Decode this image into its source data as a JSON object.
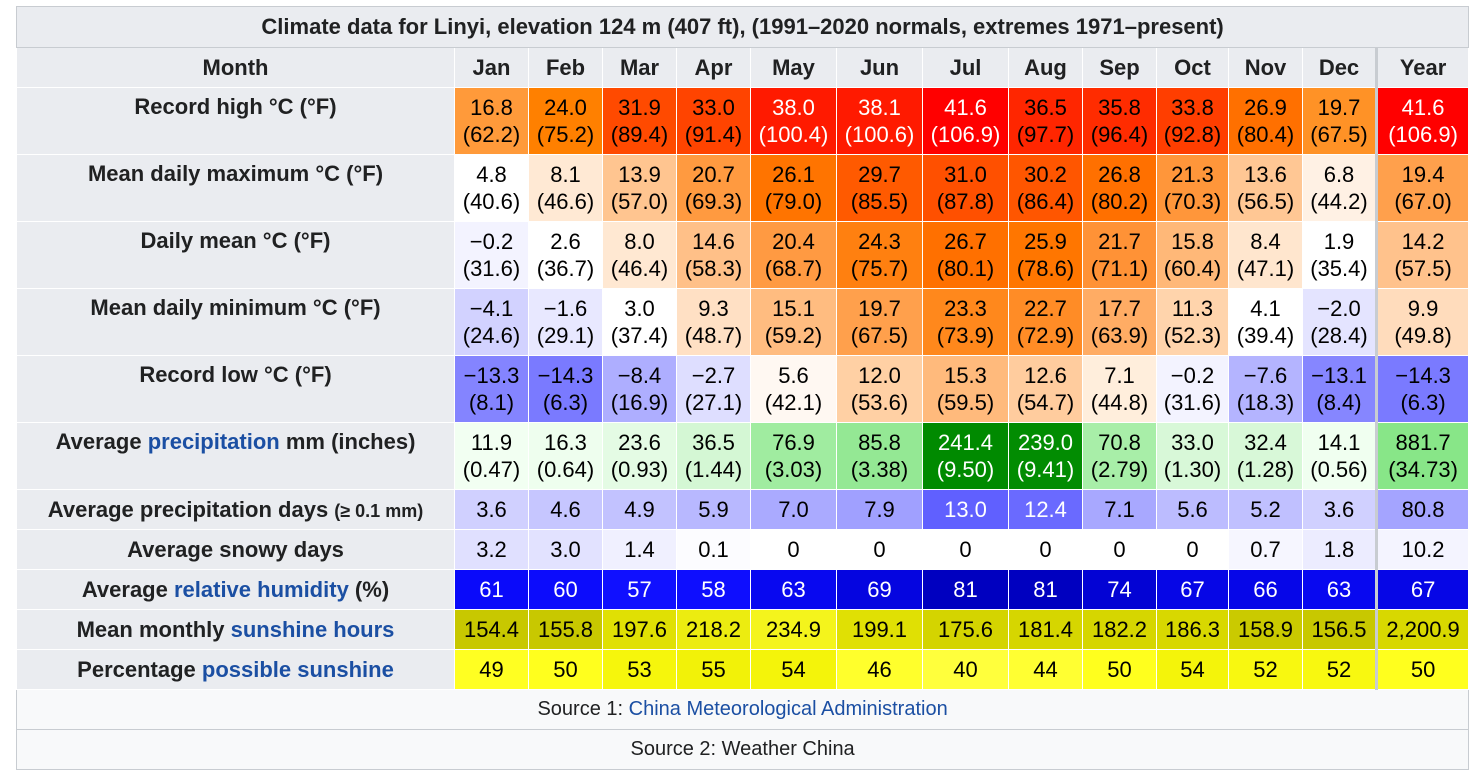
{
  "title": "Climate data for Linyi, elevation 124 m (407 ft), (1991–2020 normals, extremes 1971–present)",
  "header": {
    "month_label": "Month",
    "months": [
      "Jan",
      "Feb",
      "Mar",
      "Apr",
      "May",
      "Jun",
      "Jul",
      "Aug",
      "Sep",
      "Oct",
      "Nov",
      "Dec"
    ],
    "year_label": "Year"
  },
  "rows": [
    {
      "label_parts": [
        {
          "text": "Record high °C (°F)",
          "link": false
        }
      ],
      "tall": true,
      "cells": [
        {
          "v": "16.8",
          "s": "(62.2)",
          "bg": "#ff9a3a",
          "fg": "#000000"
        },
        {
          "v": "24.0",
          "s": "(75.2)",
          "bg": "#ff8000",
          "fg": "#000000"
        },
        {
          "v": "31.9",
          "s": "(89.4)",
          "bg": "#ff4a00",
          "fg": "#000000"
        },
        {
          "v": "33.0",
          "s": "(91.4)",
          "bg": "#ff4400",
          "fg": "#000000"
        },
        {
          "v": "38.0",
          "s": "(100.4)",
          "bg": "#ff1a00",
          "fg": "#ffffff"
        },
        {
          "v": "38.1",
          "s": "(100.6)",
          "bg": "#ff1a00",
          "fg": "#ffffff"
        },
        {
          "v": "41.6",
          "s": "(106.9)",
          "bg": "#ff0000",
          "fg": "#ffffff"
        },
        {
          "v": "36.5",
          "s": "(97.7)",
          "bg": "#ff2600",
          "fg": "#000000"
        },
        {
          "v": "35.8",
          "s": "(96.4)",
          "bg": "#ff2c00",
          "fg": "#000000"
        },
        {
          "v": "33.8",
          "s": "(92.8)",
          "bg": "#ff3e00",
          "fg": "#000000"
        },
        {
          "v": "26.9",
          "s": "(80.4)",
          "bg": "#ff7000",
          "fg": "#000000"
        },
        {
          "v": "19.7",
          "s": "(67.5)",
          "bg": "#ff9226",
          "fg": "#000000"
        },
        {
          "v": "41.6",
          "s": "(106.9)",
          "bg": "#ff0000",
          "fg": "#ffffff"
        }
      ]
    },
    {
      "label_parts": [
        {
          "text": "Mean daily maximum °C (°F)",
          "link": false
        }
      ],
      "tall": true,
      "cells": [
        {
          "v": "4.8",
          "s": "(40.6)",
          "bg": "#ffffff",
          "fg": "#000000"
        },
        {
          "v": "8.1",
          "s": "(46.6)",
          "bg": "#ffe9d4",
          "fg": "#000000"
        },
        {
          "v": "13.9",
          "s": "(57.0)",
          "bg": "#ffc590",
          "fg": "#000000"
        },
        {
          "v": "20.7",
          "s": "(69.3)",
          "bg": "#ff9a40",
          "fg": "#000000"
        },
        {
          "v": "26.1",
          "s": "(79.0)",
          "bg": "#ff7400",
          "fg": "#000000"
        },
        {
          "v": "29.7",
          "s": "(85.5)",
          "bg": "#ff5a00",
          "fg": "#000000"
        },
        {
          "v": "31.0",
          "s": "(87.8)",
          "bg": "#ff5000",
          "fg": "#000000"
        },
        {
          "v": "30.2",
          "s": "(86.4)",
          "bg": "#ff5600",
          "fg": "#000000"
        },
        {
          "v": "26.8",
          "s": "(80.2)",
          "bg": "#ff7000",
          "fg": "#000000"
        },
        {
          "v": "21.3",
          "s": "(70.3)",
          "bg": "#ff963a",
          "fg": "#000000"
        },
        {
          "v": "13.6",
          "s": "(56.5)",
          "bg": "#ffc794",
          "fg": "#000000"
        },
        {
          "v": "6.8",
          "s": "(44.2)",
          "bg": "#fff1e4",
          "fg": "#000000"
        },
        {
          "v": "19.4",
          "s": "(67.0)",
          "bg": "#ffa04c",
          "fg": "#000000"
        }
      ]
    },
    {
      "label_parts": [
        {
          "text": "Daily mean °C (°F)",
          "link": false
        }
      ],
      "tall": true,
      "cells": [
        {
          "v": "−0.2",
          "s": "(31.6)",
          "bg": "#f3f3ff",
          "fg": "#000000"
        },
        {
          "v": "2.6",
          "s": "(36.7)",
          "bg": "#ffffff",
          "fg": "#000000"
        },
        {
          "v": "8.0",
          "s": "(46.4)",
          "bg": "#ffe8d2",
          "fg": "#000000"
        },
        {
          "v": "14.6",
          "s": "(58.3)",
          "bg": "#ffc088",
          "fg": "#000000"
        },
        {
          "v": "20.4",
          "s": "(68.7)",
          "bg": "#ff9a42",
          "fg": "#000000"
        },
        {
          "v": "24.3",
          "s": "(75.7)",
          "bg": "#ff8010",
          "fg": "#000000"
        },
        {
          "v": "26.7",
          "s": "(80.1)",
          "bg": "#ff7000",
          "fg": "#000000"
        },
        {
          "v": "25.9",
          "s": "(78.6)",
          "bg": "#ff7600",
          "fg": "#000000"
        },
        {
          "v": "21.7",
          "s": "(71.1)",
          "bg": "#ff9236",
          "fg": "#000000"
        },
        {
          "v": "15.8",
          "s": "(60.4)",
          "bg": "#ffb878",
          "fg": "#000000"
        },
        {
          "v": "8.4",
          "s": "(47.1)",
          "bg": "#ffe6ce",
          "fg": "#000000"
        },
        {
          "v": "1.9",
          "s": "(35.4)",
          "bg": "#ffffff",
          "fg": "#000000"
        },
        {
          "v": "14.2",
          "s": "(57.5)",
          "bg": "#ffc28c",
          "fg": "#000000"
        }
      ]
    },
    {
      "label_parts": [
        {
          "text": "Mean daily minimum °C (°F)",
          "link": false
        }
      ],
      "tall": true,
      "cells": [
        {
          "v": "−4.1",
          "s": "(24.6)",
          "bg": "#d2d2ff",
          "fg": "#000000"
        },
        {
          "v": "−1.6",
          "s": "(29.1)",
          "bg": "#e8e8ff",
          "fg": "#000000"
        },
        {
          "v": "3.0",
          "s": "(37.4)",
          "bg": "#ffffff",
          "fg": "#000000"
        },
        {
          "v": "9.3",
          "s": "(48.7)",
          "bg": "#ffe0c4",
          "fg": "#000000"
        },
        {
          "v": "15.1",
          "s": "(59.2)",
          "bg": "#ffbc80",
          "fg": "#000000"
        },
        {
          "v": "19.7",
          "s": "(67.5)",
          "bg": "#ffa04c",
          "fg": "#000000"
        },
        {
          "v": "23.3",
          "s": "(73.9)",
          "bg": "#ff881c",
          "fg": "#000000"
        },
        {
          "v": "22.7",
          "s": "(72.9)",
          "bg": "#ff8c26",
          "fg": "#000000"
        },
        {
          "v": "17.7",
          "s": "(63.9)",
          "bg": "#ffac64",
          "fg": "#000000"
        },
        {
          "v": "11.3",
          "s": "(52.3)",
          "bg": "#ffd4ac",
          "fg": "#000000"
        },
        {
          "v": "4.1",
          "s": "(39.4)",
          "bg": "#ffffff",
          "fg": "#000000"
        },
        {
          "v": "−2.0",
          "s": "(28.4)",
          "bg": "#e4e4ff",
          "fg": "#000000"
        },
        {
          "v": "9.9",
          "s": "(49.8)",
          "bg": "#ffdcbc",
          "fg": "#000000"
        }
      ]
    },
    {
      "label_parts": [
        {
          "text": "Record low °C (°F)",
          "link": false
        }
      ],
      "tall": true,
      "cells": [
        {
          "v": "−13.3",
          "s": "(8.1)",
          "bg": "#8484ff",
          "fg": "#000000"
        },
        {
          "v": "−14.3",
          "s": "(6.3)",
          "bg": "#7a7aff",
          "fg": "#000000"
        },
        {
          "v": "−8.4",
          "s": "(16.9)",
          "bg": "#aeaeff",
          "fg": "#000000"
        },
        {
          "v": "−2.7",
          "s": "(27.1)",
          "bg": "#dedeff",
          "fg": "#000000"
        },
        {
          "v": "5.6",
          "s": "(42.1)",
          "bg": "#fff8f2",
          "fg": "#000000"
        },
        {
          "v": "12.0",
          "s": "(53.6)",
          "bg": "#ffd0a4",
          "fg": "#000000"
        },
        {
          "v": "15.3",
          "s": "(59.5)",
          "bg": "#ffba7c",
          "fg": "#000000"
        },
        {
          "v": "12.6",
          "s": "(54.7)",
          "bg": "#ffcc9e",
          "fg": "#000000"
        },
        {
          "v": "7.1",
          "s": "(44.8)",
          "bg": "#ffeedc",
          "fg": "#000000"
        },
        {
          "v": "−0.2",
          "s": "(31.6)",
          "bg": "#f3f3ff",
          "fg": "#000000"
        },
        {
          "v": "−7.6",
          "s": "(18.3)",
          "bg": "#b4b4ff",
          "fg": "#000000"
        },
        {
          "v": "−13.1",
          "s": "(8.4)",
          "bg": "#8686ff",
          "fg": "#000000"
        },
        {
          "v": "−14.3",
          "s": "(6.3)",
          "bg": "#7a7aff",
          "fg": "#000000"
        }
      ]
    },
    {
      "label_parts": [
        {
          "text": "Average ",
          "link": false
        },
        {
          "text": "precipitation",
          "link": true
        },
        {
          "text": " mm (inches)",
          "link": false
        }
      ],
      "tall": true,
      "cells": [
        {
          "v": "11.9",
          "s": "(0.47)",
          "bg": "#f2fff2",
          "fg": "#000000"
        },
        {
          "v": "16.3",
          "s": "(0.64)",
          "bg": "#eefeee",
          "fg": "#000000"
        },
        {
          "v": "23.6",
          "s": "(0.93)",
          "bg": "#e4fbe4",
          "fg": "#000000"
        },
        {
          "v": "36.5",
          "s": "(1.44)",
          "bg": "#d4f7d4",
          "fg": "#000000"
        },
        {
          "v": "76.9",
          "s": "(3.03)",
          "bg": "#a0eca0",
          "fg": "#000000"
        },
        {
          "v": "85.8",
          "s": "(3.38)",
          "bg": "#94e894",
          "fg": "#000000"
        },
        {
          "v": "241.4",
          "s": "(9.50)",
          "bg": "#008a00",
          "fg": "#ffffff"
        },
        {
          "v": "239.0",
          "s": "(9.41)",
          "bg": "#028c02",
          "fg": "#ffffff"
        },
        {
          "v": "70.8",
          "s": "(2.79)",
          "bg": "#a8eea8",
          "fg": "#000000"
        },
        {
          "v": "33.0",
          "s": "(1.30)",
          "bg": "#d8f8d8",
          "fg": "#000000"
        },
        {
          "v": "32.4",
          "s": "(1.28)",
          "bg": "#d8f8d8",
          "fg": "#000000"
        },
        {
          "v": "14.1",
          "s": "(0.56)",
          "bg": "#f0fff0",
          "fg": "#000000"
        },
        {
          "v": "881.7",
          "s": "(34.73)",
          "bg": "#88e688",
          "fg": "#000000"
        }
      ]
    },
    {
      "label_parts": [
        {
          "text": "Average precipitation days ",
          "link": false
        },
        {
          "text": "(≥ 0.1 mm)",
          "link": false,
          "small": true
        }
      ],
      "tall": false,
      "cells": [
        {
          "v": "3.6",
          "bg": "#d0d0ff",
          "fg": "#000000"
        },
        {
          "v": "4.6",
          "bg": "#c6c6ff",
          "fg": "#000000"
        },
        {
          "v": "4.9",
          "bg": "#c2c2ff",
          "fg": "#000000"
        },
        {
          "v": "5.9",
          "bg": "#b8b8ff",
          "fg": "#000000"
        },
        {
          "v": "7.0",
          "bg": "#aaaaff",
          "fg": "#000000"
        },
        {
          "v": "7.9",
          "bg": "#a0a0ff",
          "fg": "#000000"
        },
        {
          "v": "13.0",
          "bg": "#6060ff",
          "fg": "#ffffff"
        },
        {
          "v": "12.4",
          "bg": "#6a6aff",
          "fg": "#ffffff"
        },
        {
          "v": "7.1",
          "bg": "#a8a8ff",
          "fg": "#000000"
        },
        {
          "v": "5.6",
          "bg": "#bcbcff",
          "fg": "#000000"
        },
        {
          "v": "5.2",
          "bg": "#c0c0ff",
          "fg": "#000000"
        },
        {
          "v": "3.6",
          "bg": "#d0d0ff",
          "fg": "#000000"
        },
        {
          "v": "80.8",
          "bg": "#a4a4ff",
          "fg": "#000000"
        }
      ]
    },
    {
      "label_parts": [
        {
          "text": "Average snowy days",
          "link": false
        }
      ],
      "tall": false,
      "cells": [
        {
          "v": "3.2",
          "bg": "#e0e0ff",
          "fg": "#000000"
        },
        {
          "v": "3.0",
          "bg": "#e2e2ff",
          "fg": "#000000"
        },
        {
          "v": "1.4",
          "bg": "#f0f0ff",
          "fg": "#000000"
        },
        {
          "v": "0.1",
          "bg": "#fcfcff",
          "fg": "#000000"
        },
        {
          "v": "0",
          "bg": "#ffffff",
          "fg": "#000000"
        },
        {
          "v": "0",
          "bg": "#ffffff",
          "fg": "#000000"
        },
        {
          "v": "0",
          "bg": "#ffffff",
          "fg": "#000000"
        },
        {
          "v": "0",
          "bg": "#ffffff",
          "fg": "#000000"
        },
        {
          "v": "0",
          "bg": "#ffffff",
          "fg": "#000000"
        },
        {
          "v": "0",
          "bg": "#ffffff",
          "fg": "#000000"
        },
        {
          "v": "0.7",
          "bg": "#f6f6ff",
          "fg": "#000000"
        },
        {
          "v": "1.8",
          "bg": "#ececff",
          "fg": "#000000"
        },
        {
          "v": "10.2",
          "bg": "#f4f4ff",
          "fg": "#000000"
        }
      ]
    },
    {
      "label_parts": [
        {
          "text": "Average ",
          "link": false
        },
        {
          "text": "relative humidity",
          "link": true
        },
        {
          "text": " (%)",
          "link": false
        }
      ],
      "tall": false,
      "cells": [
        {
          "v": "61",
          "bg": "#0a0afa",
          "fg": "#ffffff"
        },
        {
          "v": "60",
          "bg": "#0c0cfc",
          "fg": "#ffffff"
        },
        {
          "v": "57",
          "bg": "#1010ff",
          "fg": "#ffffff"
        },
        {
          "v": "58",
          "bg": "#0e0efe",
          "fg": "#ffffff"
        },
        {
          "v": "63",
          "bg": "#0808f0",
          "fg": "#ffffff"
        },
        {
          "v": "69",
          "bg": "#0505e0",
          "fg": "#ffffff"
        },
        {
          "v": "81",
          "bg": "#0000c0",
          "fg": "#ffffff"
        },
        {
          "v": "81",
          "bg": "#0000c0",
          "fg": "#ffffff"
        },
        {
          "v": "74",
          "bg": "#0303d4",
          "fg": "#ffffff"
        },
        {
          "v": "67",
          "bg": "#0606e6",
          "fg": "#ffffff"
        },
        {
          "v": "66",
          "bg": "#0606e8",
          "fg": "#ffffff"
        },
        {
          "v": "63",
          "bg": "#0808f0",
          "fg": "#ffffff"
        },
        {
          "v": "67",
          "bg": "#0606e6",
          "fg": "#ffffff"
        }
      ]
    },
    {
      "label_parts": [
        {
          "text": "Mean monthly ",
          "link": false
        },
        {
          "text": "sunshine hours",
          "link": true
        }
      ],
      "tall": false,
      "cells": [
        {
          "v": "154.4",
          "bg": "#c8c800",
          "fg": "#000000"
        },
        {
          "v": "155.8",
          "bg": "#c8c800",
          "fg": "#000000"
        },
        {
          "v": "197.6",
          "bg": "#e0e004",
          "fg": "#000000"
        },
        {
          "v": "218.2",
          "bg": "#ecec10",
          "fg": "#000000"
        },
        {
          "v": "234.9",
          "bg": "#f4f41c",
          "fg": "#000000"
        },
        {
          "v": "199.1",
          "bg": "#e0e004",
          "fg": "#000000"
        },
        {
          "v": "175.6",
          "bg": "#d4d400",
          "fg": "#000000"
        },
        {
          "v": "181.4",
          "bg": "#d6d600",
          "fg": "#000000"
        },
        {
          "v": "182.2",
          "bg": "#d6d600",
          "fg": "#000000"
        },
        {
          "v": "186.3",
          "bg": "#d8d800",
          "fg": "#000000"
        },
        {
          "v": "158.9",
          "bg": "#caca00",
          "fg": "#000000"
        },
        {
          "v": "156.5",
          "bg": "#c8c800",
          "fg": "#000000"
        },
        {
          "v": "2,200.9",
          "bg": "#d8d800",
          "fg": "#000000"
        }
      ]
    },
    {
      "label_parts": [
        {
          "text": "Percentage ",
          "link": false
        },
        {
          "text": "possible sunshine",
          "link": true
        }
      ],
      "tall": false,
      "cells": [
        {
          "v": "49",
          "bg": "#ffff22",
          "fg": "#000000"
        },
        {
          "v": "50",
          "bg": "#ffff1e",
          "fg": "#000000"
        },
        {
          "v": "53",
          "bg": "#f6f60c",
          "fg": "#000000"
        },
        {
          "v": "55",
          "bg": "#f2f208",
          "fg": "#000000"
        },
        {
          "v": "54",
          "bg": "#f4f40a",
          "fg": "#000000"
        },
        {
          "v": "46",
          "bg": "#ffff2c",
          "fg": "#000000"
        },
        {
          "v": "40",
          "bg": "#ffff3c",
          "fg": "#000000"
        },
        {
          "v": "44",
          "bg": "#ffff32",
          "fg": "#000000"
        },
        {
          "v": "50",
          "bg": "#ffff1e",
          "fg": "#000000"
        },
        {
          "v": "54",
          "bg": "#f4f40a",
          "fg": "#000000"
        },
        {
          "v": "52",
          "bg": "#f8f810",
          "fg": "#000000"
        },
        {
          "v": "52",
          "bg": "#f8f810",
          "fg": "#000000"
        },
        {
          "v": "50",
          "bg": "#ffff1e",
          "fg": "#000000"
        }
      ]
    }
  ],
  "sources": [
    {
      "prefix": "Source 1: ",
      "link_text": "China Meteorological Administration",
      "suffix": ""
    },
    {
      "prefix": "Source 2: Weather China",
      "link_text": "",
      "suffix": ""
    }
  ]
}
